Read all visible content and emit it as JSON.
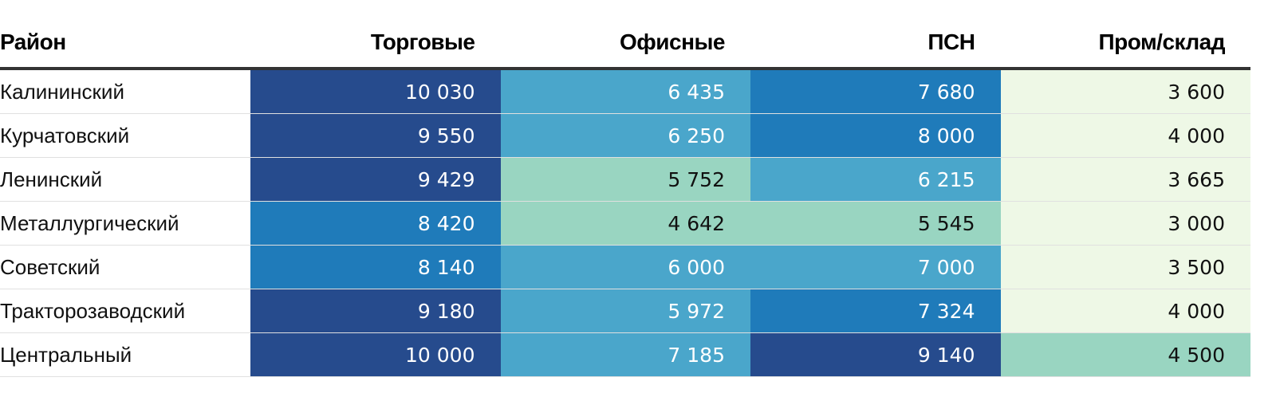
{
  "chart_data": {
    "type": "table",
    "columns": [
      "Район",
      "Торговые",
      "Офисные",
      "ПСН",
      "Пром/склад"
    ],
    "rows": [
      {
        "district": "Калининский",
        "values": [
          "10 030",
          "6 435",
          "7 680",
          "3 600"
        ],
        "colors": [
          "#264b8d",
          "#4aa6cb",
          "#1f7bba",
          "#eef8e6"
        ]
      },
      {
        "district": "Курчатовский",
        "values": [
          "9 550",
          "6 250",
          "8 000",
          "4 000"
        ],
        "colors": [
          "#264b8d",
          "#4aa6cb",
          "#1f7bba",
          "#eef8e6"
        ]
      },
      {
        "district": "Ленинский",
        "values": [
          "9 429",
          "5 752",
          "6 215",
          "3 665"
        ],
        "colors": [
          "#264b8d",
          "#99d5c1",
          "#4aa6cb",
          "#eef8e6"
        ]
      },
      {
        "district": "Металлургический",
        "values": [
          "8 420",
          "4 642",
          "5 545",
          "3 000"
        ],
        "colors": [
          "#1f7bba",
          "#99d5c1",
          "#99d5c1",
          "#eef8e6"
        ]
      },
      {
        "district": "Советский",
        "values": [
          "8 140",
          "6 000",
          "7 000",
          "3 500"
        ],
        "colors": [
          "#1f7bba",
          "#4aa6cb",
          "#4aa6cb",
          "#eef8e6"
        ]
      },
      {
        "district": "Тракторозаводский",
        "values": [
          "9 180",
          "5 972",
          "7 324",
          "4 000"
        ],
        "colors": [
          "#264b8d",
          "#4aa6cb",
          "#1f7bba",
          "#eef8e6"
        ]
      },
      {
        "district": "Центральный",
        "values": [
          "10 000",
          "7 185",
          "9 140",
          "4 500"
        ],
        "colors": [
          "#264b8d",
          "#4aa6cb",
          "#264b8d",
          "#99d5c1"
        ]
      }
    ],
    "text_colors": {
      "#264b8d": "#ffffff",
      "#1f7bba": "#ffffff",
      "#4aa6cb": "#ffffff",
      "#99d5c1": "#111111",
      "#eef8e6": "#111111"
    }
  }
}
